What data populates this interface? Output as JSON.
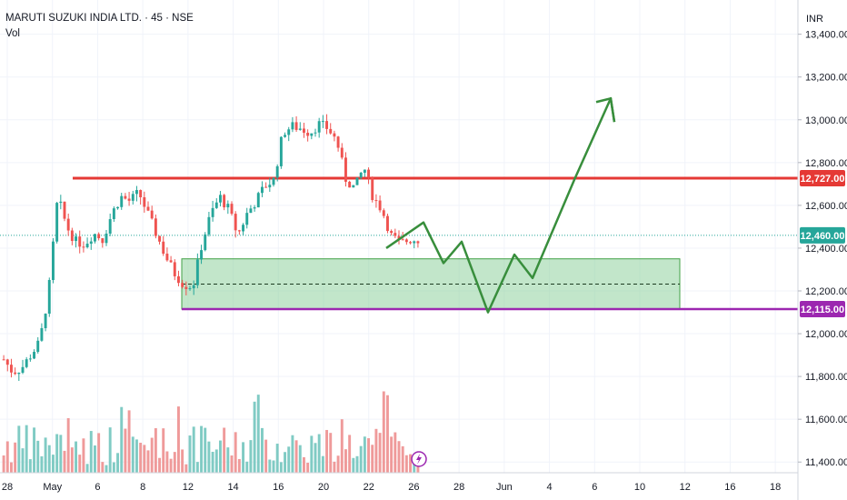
{
  "header": {
    "symbol_line": "MARUTI SUZUKI INDIA LTD. · 45 · NSE",
    "volume_label": "Vol"
  },
  "price_axis": {
    "currency": "INR"
  },
  "colors": {
    "up": "#26a69a",
    "down": "#ef5350",
    "resistance": "#e53935",
    "support": "#9c27b0",
    "last_price": "#26a69a",
    "zone_fill": "#8fd19e",
    "zone_stroke": "#43a047",
    "projection": "#388e3c",
    "volume_up": "#80cbc4",
    "volume_down": "#ef9a9a"
  },
  "chart_data": {
    "type": "candlestick",
    "x_labels": [
      "28",
      "May",
      "6",
      "8",
      "12",
      "14",
      "16",
      "20",
      "22",
      "26",
      "28",
      "Jun",
      "4",
      "6",
      "10",
      "12",
      "16",
      "18"
    ],
    "y_ticks": [
      11400,
      11600,
      11800,
      12000,
      12200,
      12400,
      12600,
      12800,
      13000,
      13200,
      13400
    ],
    "y_tick_labels": [
      "11,400.00",
      "11,600.00",
      "11,800.00",
      "12,000.00",
      "12,200.00",
      "12,400.00",
      "12,600.00",
      "12,800.00",
      "13,000.00",
      "13,200.00",
      "13,400.00"
    ],
    "ylim": [
      11350,
      13560
    ],
    "price_trend": [
      11880,
      11820,
      11840,
      11900,
      11960,
      12200,
      12640,
      12500,
      12430,
      12420,
      12470,
      12440,
      12560,
      12640,
      12620,
      12660,
      12560,
      12460,
      12360,
      12280,
      12230,
      12220,
      12420,
      12560,
      12640,
      12580,
      12460,
      12560,
      12620,
      12690,
      12720,
      12940,
      12970,
      12960,
      12940,
      12980,
      12960,
      12900,
      12720,
      12680,
      12780,
      12640,
      12580,
      12460,
      12420,
      12440,
      12440
    ],
    "levels": [
      {
        "label": "12,727.00",
        "value": 12727,
        "role": "resistance"
      },
      {
        "label": "12,460.00",
        "value": 12460,
        "role": "last_price"
      },
      {
        "label": "12,115.00",
        "value": 12115,
        "role": "support"
      }
    ],
    "zone": {
      "low": 12115,
      "high": 12350,
      "mid": 12232
    },
    "projection_path": [
      12400,
      12520,
      12330,
      12430,
      12100,
      12370,
      12260,
      12720,
      13100,
      12990
    ],
    "grid": true
  }
}
